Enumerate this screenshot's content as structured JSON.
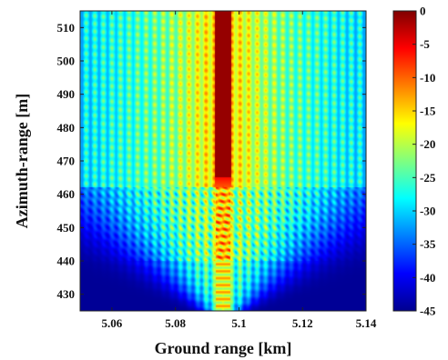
{
  "chart_data": {
    "type": "heatmap",
    "title": "",
    "xlabel": "Ground range [km]",
    "ylabel": "Azimuth-range [m]",
    "xlim": [
      5.05,
      5.14
    ],
    "ylim": [
      425,
      515
    ],
    "xticks": [
      5.06,
      5.08,
      5.1,
      5.12,
      5.14
    ],
    "xtick_labels": [
      "5.06",
      "5.08",
      "5.1",
      "5.12",
      "5.14"
    ],
    "yticks": [
      430,
      440,
      450,
      460,
      470,
      480,
      490,
      500,
      510
    ],
    "ytick_labels": [
      "430",
      "440",
      "450",
      "460",
      "470",
      "480",
      "490",
      "500",
      "510"
    ],
    "colormap": "jet",
    "colorbar": {
      "min": -45,
      "max": 0,
      "ticks": [
        0,
        -5,
        -10,
        -15,
        -20,
        -25,
        -30,
        -35,
        -40,
        -45
      ],
      "tick_labels": [
        "0",
        "-5",
        "-10",
        "-15",
        "-20",
        "-25",
        "-30",
        "-35",
        "-40",
        "-45"
      ]
    },
    "peak": {
      "x": 5.095,
      "y_from": 465,
      "y_to": 515,
      "value": 0
    },
    "fringe_spacing_km": 0.0027,
    "fringe_decay_km": 0.03,
    "grid": false
  }
}
